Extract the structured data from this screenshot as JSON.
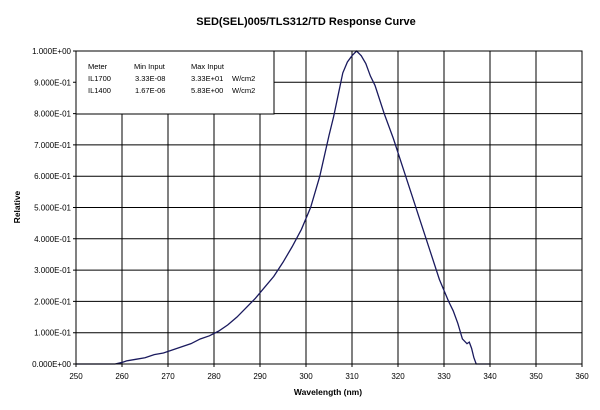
{
  "chart_data": {
    "type": "line",
    "title": "SED(SEL)005/TLS312/TD Response Curve",
    "xlabel": "Wavelength (nm)",
    "ylabel": "Relative",
    "xlim": [
      250,
      360
    ],
    "ylim": [
      0,
      1
    ],
    "grid": true,
    "x_ticks": [
      "250",
      "260",
      "270",
      "280",
      "290",
      "300",
      "310",
      "320",
      "330",
      "340",
      "350",
      "360"
    ],
    "y_ticks": [
      "0.000E+00",
      "1.000E-01",
      "2.000E-01",
      "3.000E-01",
      "4.000E-01",
      "5.000E-01",
      "6.000E-01",
      "7.000E-01",
      "8.000E-01",
      "9.000E-01",
      "1.000E+00"
    ],
    "series": [
      {
        "color": "#1a1a5e",
        "points": [
          [
            250,
            0.0
          ],
          [
            255,
            0.0
          ],
          [
            258.5,
            0.0
          ],
          [
            260,
            0.005
          ],
          [
            261,
            0.01
          ],
          [
            263,
            0.015
          ],
          [
            265,
            0.02
          ],
          [
            267,
            0.03
          ],
          [
            269,
            0.035
          ],
          [
            271,
            0.045
          ],
          [
            273,
            0.055
          ],
          [
            275,
            0.065
          ],
          [
            277,
            0.08
          ],
          [
            279,
            0.09
          ],
          [
            281,
            0.105
          ],
          [
            283,
            0.125
          ],
          [
            285,
            0.15
          ],
          [
            287,
            0.18
          ],
          [
            289,
            0.21
          ],
          [
            291,
            0.245
          ],
          [
            293,
            0.28
          ],
          [
            295,
            0.325
          ],
          [
            297,
            0.375
          ],
          [
            299,
            0.43
          ],
          [
            301,
            0.5
          ],
          [
            303,
            0.6
          ],
          [
            305,
            0.73
          ],
          [
            306,
            0.79
          ],
          [
            307,
            0.86
          ],
          [
            308,
            0.93
          ],
          [
            309,
            0.965
          ],
          [
            310,
            0.985
          ],
          [
            311,
            1.0
          ],
          [
            312,
            0.985
          ],
          [
            313,
            0.96
          ],
          [
            314,
            0.92
          ],
          [
            315,
            0.89
          ],
          [
            317,
            0.8
          ],
          [
            319,
            0.72
          ],
          [
            321,
            0.63
          ],
          [
            323,
            0.54
          ],
          [
            325,
            0.45
          ],
          [
            327,
            0.36
          ],
          [
            329,
            0.27
          ],
          [
            331,
            0.2
          ],
          [
            332,
            0.17
          ],
          [
            333,
            0.13
          ],
          [
            334,
            0.08
          ],
          [
            335,
            0.065
          ],
          [
            335.5,
            0.07
          ],
          [
            336,
            0.05
          ],
          [
            336.5,
            0.02
          ],
          [
            337,
            0.0
          ],
          [
            340,
            0.0
          ]
        ]
      }
    ],
    "legend_table": {
      "headers": [
        "Meter",
        "Min Input",
        "Max Input"
      ],
      "rows": [
        [
          "IL1700",
          "3.33E-08",
          "3.33E+01",
          "W/cm2"
        ],
        [
          "IL1400",
          "1.67E-06",
          "5.83E+00",
          "W/cm2"
        ]
      ]
    }
  }
}
